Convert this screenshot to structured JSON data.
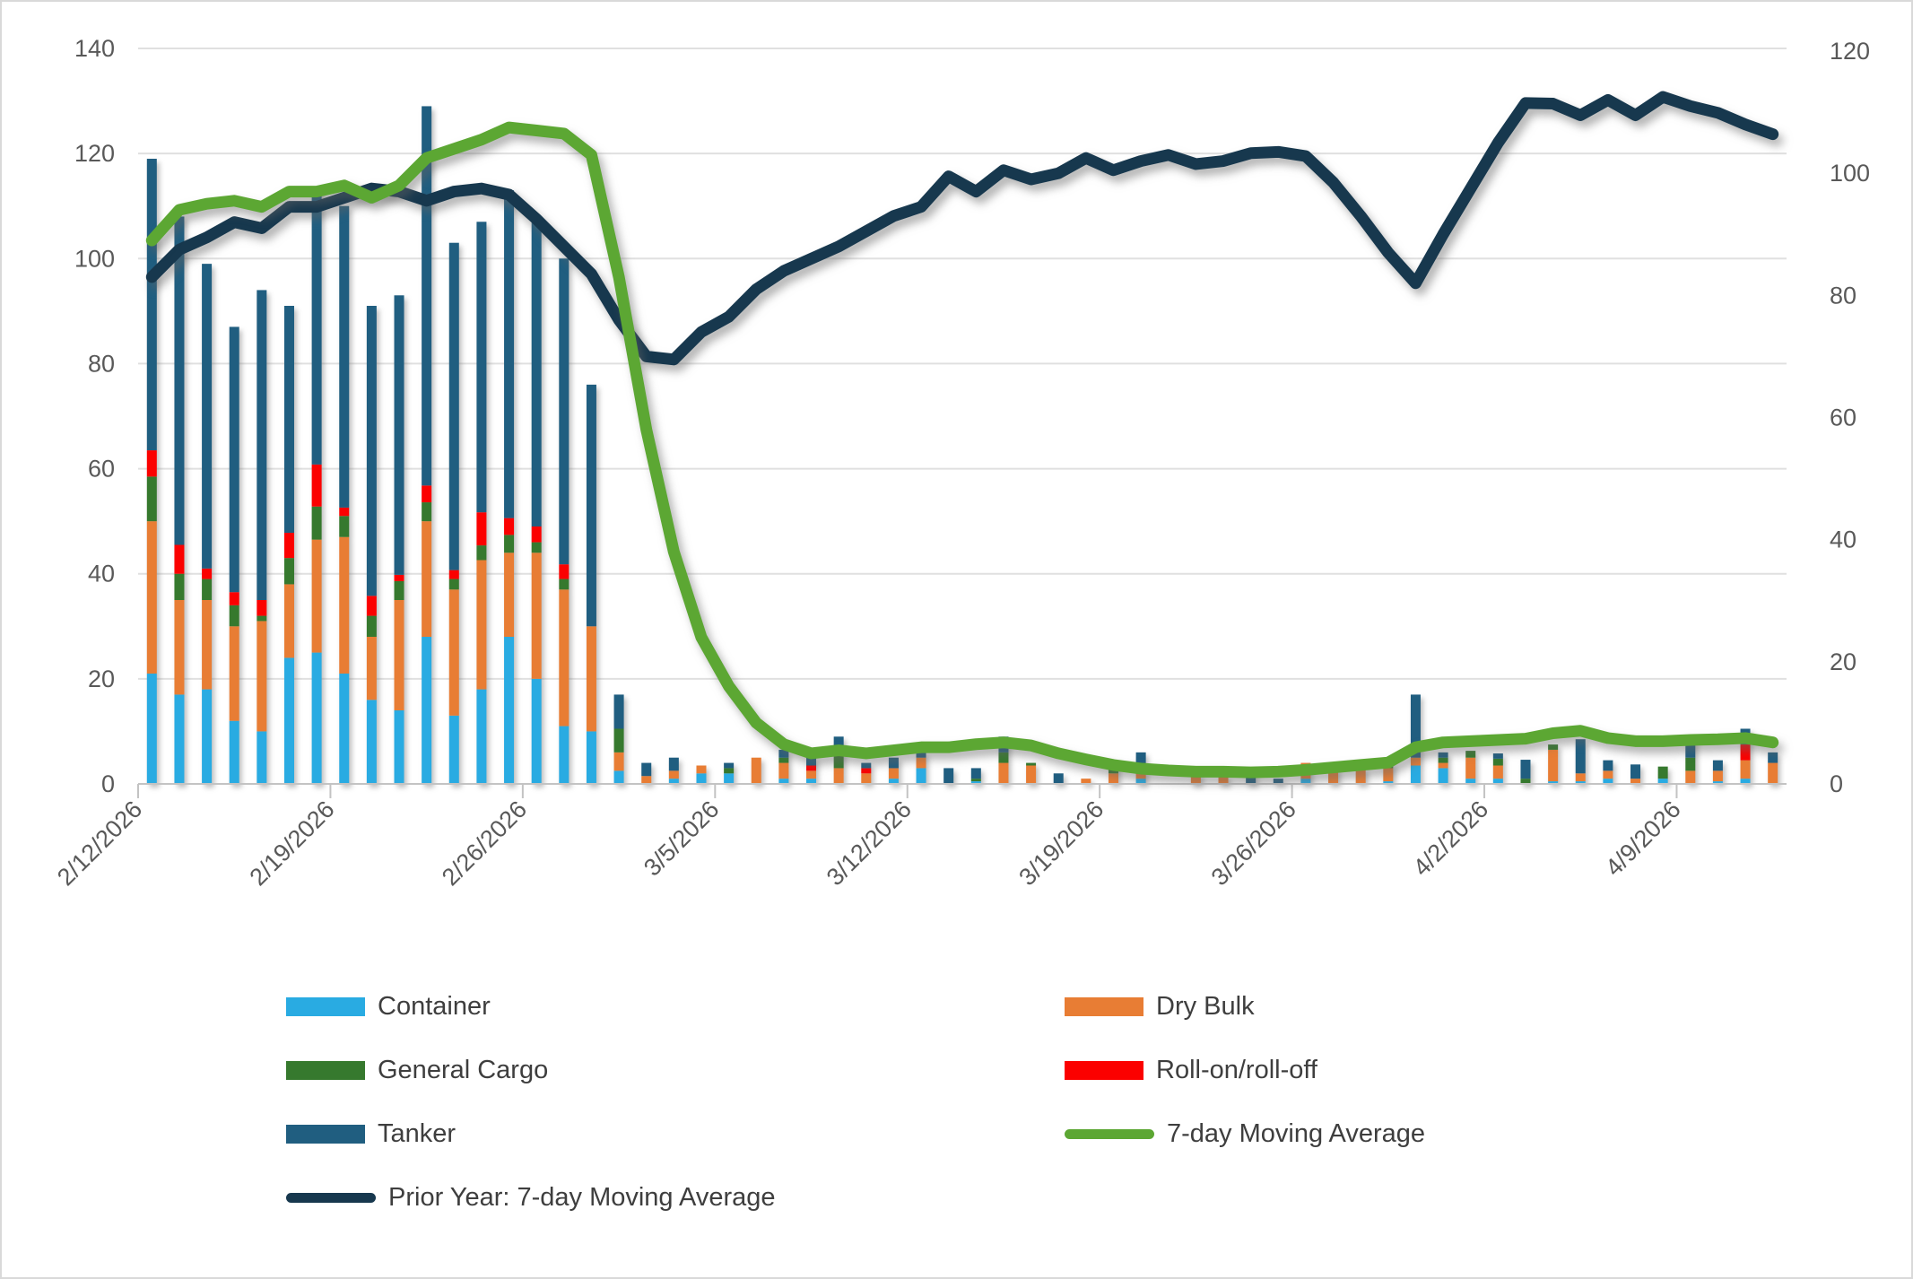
{
  "chart_data": {
    "type": "combo-stacked-bar-and-lines",
    "title": "",
    "grid": true,
    "legend_position": "bottom-two-columns",
    "left_axis": {
      "min": 0,
      "max": 140,
      "ticks": [
        0,
        20,
        40,
        60,
        80,
        100,
        120,
        140
      ]
    },
    "right_axis": {
      "min": 0,
      "max": 120,
      "ticks": [
        0,
        20,
        40,
        60,
        80,
        100,
        120
      ]
    },
    "x_tick_labels": [
      "2/12/2026",
      "2/19/2026",
      "2/26/2026",
      "3/5/2026",
      "3/12/2026",
      "3/19/2026",
      "3/26/2026",
      "4/2/2026",
      "4/9/2026"
    ],
    "categories": [
      "2/12/2026",
      "2/13/2026",
      "2/14/2026",
      "2/15/2026",
      "2/16/2026",
      "2/17/2026",
      "2/18/2026",
      "2/19/2026",
      "2/20/2026",
      "2/21/2026",
      "2/22/2026",
      "2/23/2026",
      "2/24/2026",
      "2/25/2026",
      "2/26/2026",
      "2/27/2026",
      "2/28/2026",
      "3/1/2026",
      "3/2/2026",
      "3/3/2026",
      "3/4/2026",
      "3/5/2026",
      "3/6/2026",
      "3/7/2026",
      "3/8/2026",
      "3/9/2026",
      "3/10/2026",
      "3/11/2026",
      "3/12/2026",
      "3/13/2026",
      "3/14/2026",
      "3/15/2026",
      "3/16/2026",
      "3/17/2026",
      "3/18/2026",
      "3/19/2026",
      "3/20/2026",
      "3/21/2026",
      "3/22/2026",
      "3/23/2026",
      "3/24/2026",
      "3/25/2026",
      "3/26/2026",
      "3/27/2026",
      "3/28/2026",
      "3/29/2026",
      "3/30/2026",
      "3/31/2026",
      "4/1/2026",
      "4/2/2026",
      "4/3/2026",
      "4/4/2026",
      "4/5/2026",
      "4/6/2026",
      "4/7/2026",
      "4/8/2026",
      "4/9/2026",
      "4/10/2026",
      "4/11/2026",
      "4/12/2026"
    ],
    "bar_axis": "left",
    "bar_series": [
      {
        "name": "Container",
        "color": "#29abe2",
        "values": [
          21,
          17,
          18,
          12,
          10,
          24,
          25,
          21,
          16,
          14,
          28,
          13,
          18,
          28,
          20,
          11,
          10,
          2.5,
          0,
          1,
          2,
          2,
          0,
          1,
          1,
          0,
          0,
          1,
          3,
          0,
          0.5,
          0,
          0,
          0,
          0,
          0,
          1,
          0,
          0,
          0,
          0,
          0,
          1,
          0,
          0,
          0.5,
          3.5,
          3,
          1,
          1,
          0,
          0.5,
          0.5,
          1,
          0,
          1,
          0,
          0.5,
          1,
          0
        ]
      },
      {
        "name": "Dry Bulk",
        "color": "#e87d34",
        "values": [
          29,
          18,
          17,
          18,
          21,
          14,
          21.5,
          26,
          12,
          21,
          22,
          24,
          24.6,
          16,
          24,
          26,
          20,
          3.5,
          1.5,
          1.5,
          1.5,
          0,
          5,
          3,
          1.5,
          3,
          2,
          2,
          2,
          0,
          0,
          4,
          3.5,
          0,
          1,
          2,
          2,
          0,
          2,
          1.5,
          0,
          0,
          3,
          2.5,
          3,
          2.5,
          1.5,
          1,
          4,
          2.5,
          0,
          6,
          1.5,
          1.5,
          1,
          0,
          2.5,
          2,
          3.5,
          4
        ]
      },
      {
        "name": "General Cargo",
        "color": "#36792e",
        "values": [
          8.5,
          5,
          4,
          4,
          1,
          5,
          6.3,
          4,
          4,
          3.6,
          3.6,
          2,
          2.8,
          3.4,
          2,
          2,
          0,
          4.5,
          0,
          0,
          0,
          1,
          0,
          1,
          0,
          3,
          0,
          0,
          0,
          0,
          0.5,
          2,
          0.5,
          0,
          0,
          1,
          1,
          0,
          0,
          0,
          0,
          0,
          0,
          0.5,
          0,
          1,
          0,
          1,
          1.3,
          1.3,
          1,
          1,
          0,
          0,
          0,
          2.3,
          2.5,
          0,
          0,
          0
        ]
      },
      {
        "name": "Roll-on/roll-off",
        "color": "#fb0100",
        "values": [
          5,
          5.5,
          2,
          2.5,
          3,
          4.8,
          8,
          1.6,
          3.8,
          1.2,
          3.2,
          1.7,
          6.3,
          3.2,
          3,
          2.8,
          0,
          0,
          0,
          0,
          0,
          0,
          0,
          0,
          1,
          0,
          1,
          0,
          0,
          0,
          0,
          0,
          0,
          0,
          0,
          0,
          0,
          0,
          0,
          0,
          0,
          0,
          0,
          0,
          0,
          0,
          0,
          0,
          0,
          0,
          0,
          0,
          0,
          0,
          0,
          0,
          0,
          0,
          3,
          0
        ]
      },
      {
        "name": "Tanker",
        "color": "#205e80",
        "values": [
          55.5,
          62.5,
          58,
          50.5,
          59,
          43.2,
          52.2,
          57.4,
          55.2,
          53.2,
          72.2,
          62.3,
          55.3,
          62.4,
          58,
          58.2,
          46,
          6.5,
          2.5,
          2.5,
          0,
          1,
          0,
          1.5,
          1.5,
          3,
          1,
          2,
          1,
          3,
          2,
          3,
          0,
          2,
          0,
          1.5,
          2,
          0,
          0,
          0,
          2,
          1,
          0,
          0,
          0,
          0,
          12,
          1,
          0,
          1,
          3.6,
          0,
          6.5,
          2,
          2.7,
          0,
          3.6,
          2,
          3,
          2
        ]
      }
    ],
    "line_axis": "right",
    "line_series": [
      {
        "name": "7-day Moving Average",
        "color": "#5ca733",
        "values": [
          89,
          94,
          95,
          95.5,
          94.5,
          97,
          97,
          98,
          96,
          98,
          102.5,
          104,
          105.5,
          107.5,
          107,
          106.5,
          103,
          83,
          58,
          38,
          24,
          16,
          10,
          6.5,
          5,
          5.5,
          5,
          5.5,
          6,
          6,
          6.5,
          6.8,
          6.3,
          5,
          4,
          3.1,
          2.5,
          2.2,
          2,
          2,
          1.9,
          2,
          2.3,
          2.7,
          3.1,
          3.5,
          6,
          6.8,
          7,
          7.2,
          7.4,
          8.3,
          8.7,
          7.5,
          7,
          7,
          7.2,
          7.3,
          7.5,
          6.8
        ]
      },
      {
        "name": "Prior Year: 7-day Moving Average",
        "color": "#17384e",
        "values": [
          83,
          87.5,
          89.5,
          92,
          91,
          94.5,
          94.5,
          96,
          97.5,
          97,
          95.5,
          97,
          97.5,
          96.5,
          92.5,
          88,
          83.5,
          76,
          70,
          69.5,
          74,
          76.5,
          81,
          84,
          86,
          88,
          90.5,
          93,
          94.5,
          99.5,
          97,
          100.5,
          99,
          100,
          102.5,
          100.5,
          102,
          103,
          101.5,
          102,
          103.3,
          103.5,
          102.8,
          98.5,
          93,
          87,
          82,
          90,
          97.5,
          105,
          111.5,
          111.4,
          109.5,
          112,
          109.5,
          112.5,
          111,
          109.9,
          108,
          106.4
        ]
      }
    ],
    "colors": {
      "gridline": "#e0e0e0",
      "axis_line": "#c3c3c3",
      "tick_text": "#595959",
      "legend_text": "#3e3e3e",
      "background": "#ffffff"
    }
  }
}
